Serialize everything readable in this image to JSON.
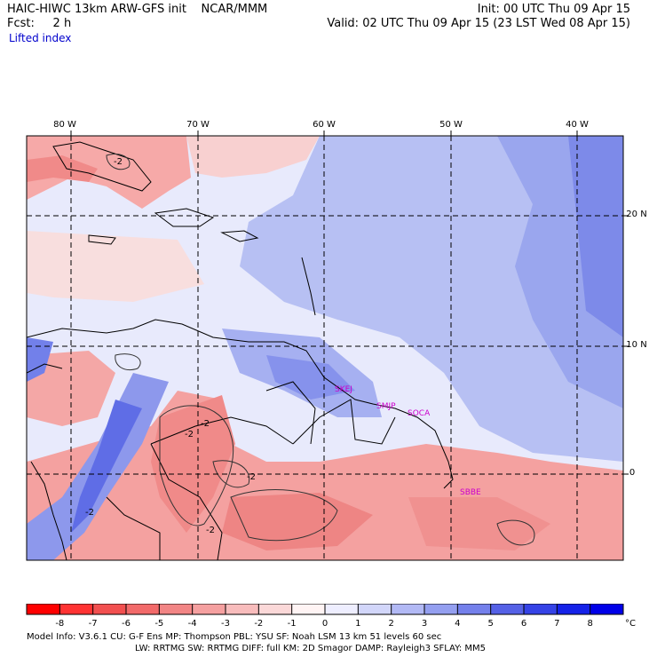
{
  "header": {
    "model": "HAIC-HIWC 13km ARW-GFS init",
    "org": "NCAR/MMM",
    "init": "Init: 00 UTC Thu 09 Apr 15",
    "fcst_label": "Fcst:",
    "fcst_value": "2 h",
    "valid": "Valid: 02 UTC Thu 09 Apr 15 (23 LST Wed 08 Apr 15)",
    "variable": "Lifted index"
  },
  "map": {
    "lon_labels": [
      "80 W",
      "70 W",
      "60 W",
      "50 W",
      "40 W"
    ],
    "lat_labels": [
      "20 N",
      "10 N",
      "0"
    ],
    "contour_labels": [
      "-2",
      "-2",
      "-2",
      "-2",
      "-2",
      "-2"
    ],
    "stations": [
      "SKEJ",
      "SMJP",
      "SOCA",
      "SBBE"
    ],
    "colors": {
      "negative": "#f2807f",
      "positive": "#8a96e8",
      "station": "#cc00cc"
    }
  },
  "colorbar": {
    "ticks": [
      "-8",
      "-7",
      "-6",
      "-5",
      "-4",
      "-3",
      "-2",
      "-1",
      "0",
      "1",
      "2",
      "3",
      "4",
      "5",
      "6",
      "7",
      "8"
    ],
    "unit": "°C",
    "colors": [
      "#ff0000",
      "#ff3333",
      "#f25050",
      "#f26a6a",
      "#f28585",
      "#f5a0a0",
      "#f8bcbc",
      "#fbd8d8",
      "#fff4f4",
      "#eeeeff",
      "#d2d6fa",
      "#b2b9f5",
      "#949ff0",
      "#7480eb",
      "#5561e6",
      "#3543e6",
      "#1522e8",
      "#0000e8"
    ]
  },
  "footer": {
    "line1": "Model Info: V3.6.1     CU: G-F Ens MP: Thompson     PBL: YSU        SF: Noah LSM      13 km     51 levels     60 sec",
    "line2": "LW: RRTMG     SW: RRTMG  DIFF: full    KM: 2D Smagor DAMP: Rayleigh3  SFLAY: MM5"
  }
}
